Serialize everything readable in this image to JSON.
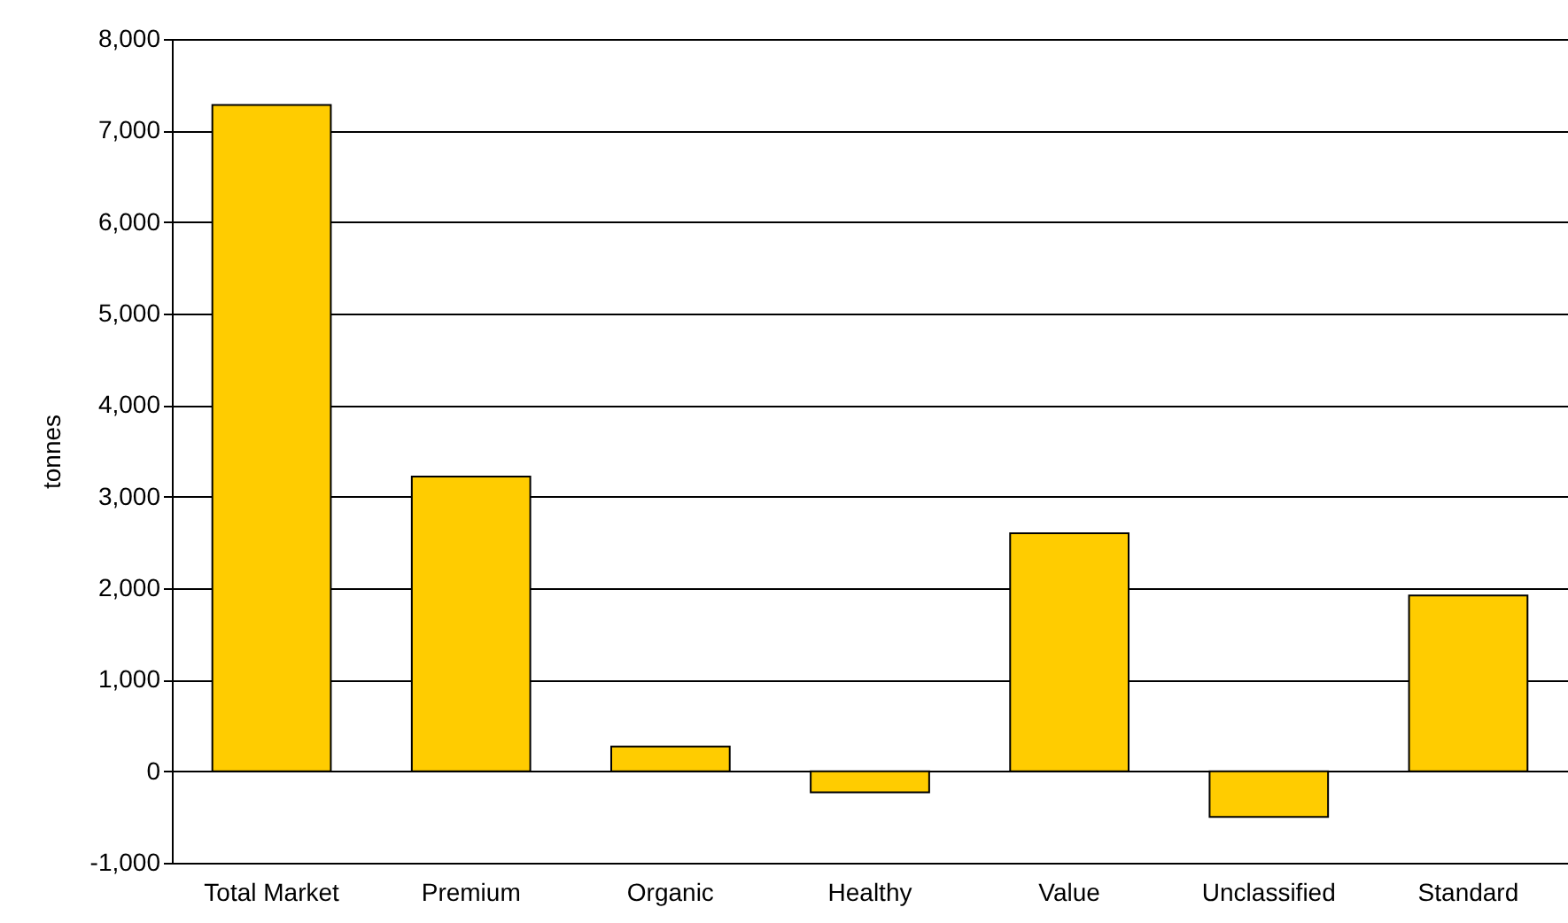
{
  "chart_data": {
    "type": "bar",
    "ylabel": "tonnes",
    "categories": [
      "Total Market",
      "Premium",
      "Organic",
      "Healthy",
      "Value",
      "Unclassified",
      "Standard"
    ],
    "values": [
      7280,
      3220,
      270,
      -230,
      2600,
      -500,
      1920
    ],
    "color": "#ffcc00",
    "ylim": [
      -1000,
      8000
    ],
    "yticks": [
      {
        "value": -1000,
        "label": "-1,000"
      },
      {
        "value": 0,
        "label": "0"
      },
      {
        "value": 1000,
        "label": "1,000"
      },
      {
        "value": 2000,
        "label": "2,000"
      },
      {
        "value": 3000,
        "label": "3,000"
      },
      {
        "value": 4000,
        "label": "4,000"
      },
      {
        "value": 5000,
        "label": "5,000"
      },
      {
        "value": 6000,
        "label": "6,000"
      },
      {
        "value": 7000,
        "label": "7,000"
      },
      {
        "value": 8000,
        "label": "8,000"
      }
    ],
    "grid": "y"
  }
}
